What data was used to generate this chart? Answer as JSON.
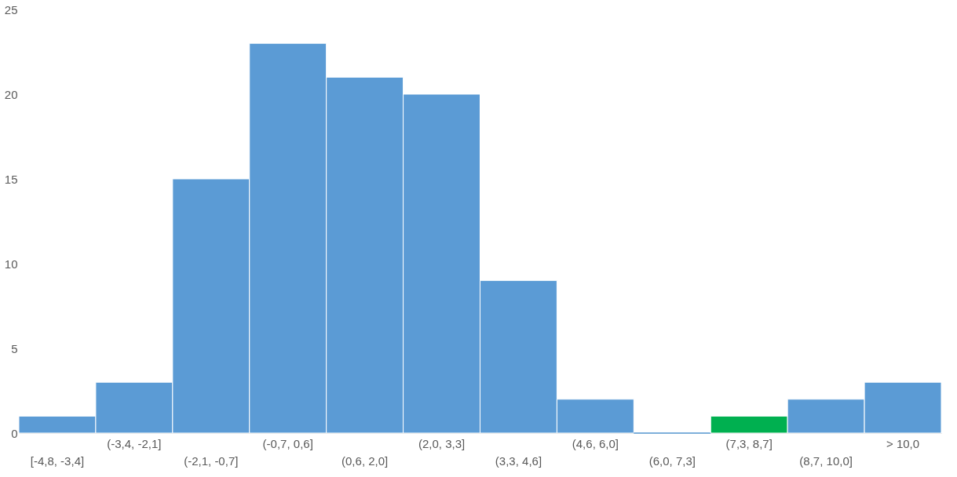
{
  "chart_data": {
    "type": "bar",
    "categories": [
      "[-4,8, -3,4]",
      "(-3,4, -2,1]",
      "(-2,1, -0,7]",
      "(-0,7, 0,6]",
      "(0,6, 2,0]",
      "(2,0, 3,3]",
      "(3,3, 4,6]",
      "(4,6, 6,0]",
      "(6,0, 7,3]",
      "(7,3, 8,7]",
      "(8,7, 10,0]",
      "> 10,0"
    ],
    "values": [
      1,
      3,
      15,
      23,
      21,
      20,
      9,
      2,
      0,
      1,
      2,
      3
    ],
    "colors": [
      "#5b9bd5",
      "#5b9bd5",
      "#5b9bd5",
      "#5b9bd5",
      "#5b9bd5",
      "#5b9bd5",
      "#5b9bd5",
      "#5b9bd5",
      "#5b9bd5",
      "#00b050",
      "#5b9bd5",
      "#5b9bd5"
    ],
    "ylim": [
      0,
      25
    ],
    "yticks": [
      0,
      5,
      10,
      15,
      20,
      25
    ],
    "grid": false
  }
}
